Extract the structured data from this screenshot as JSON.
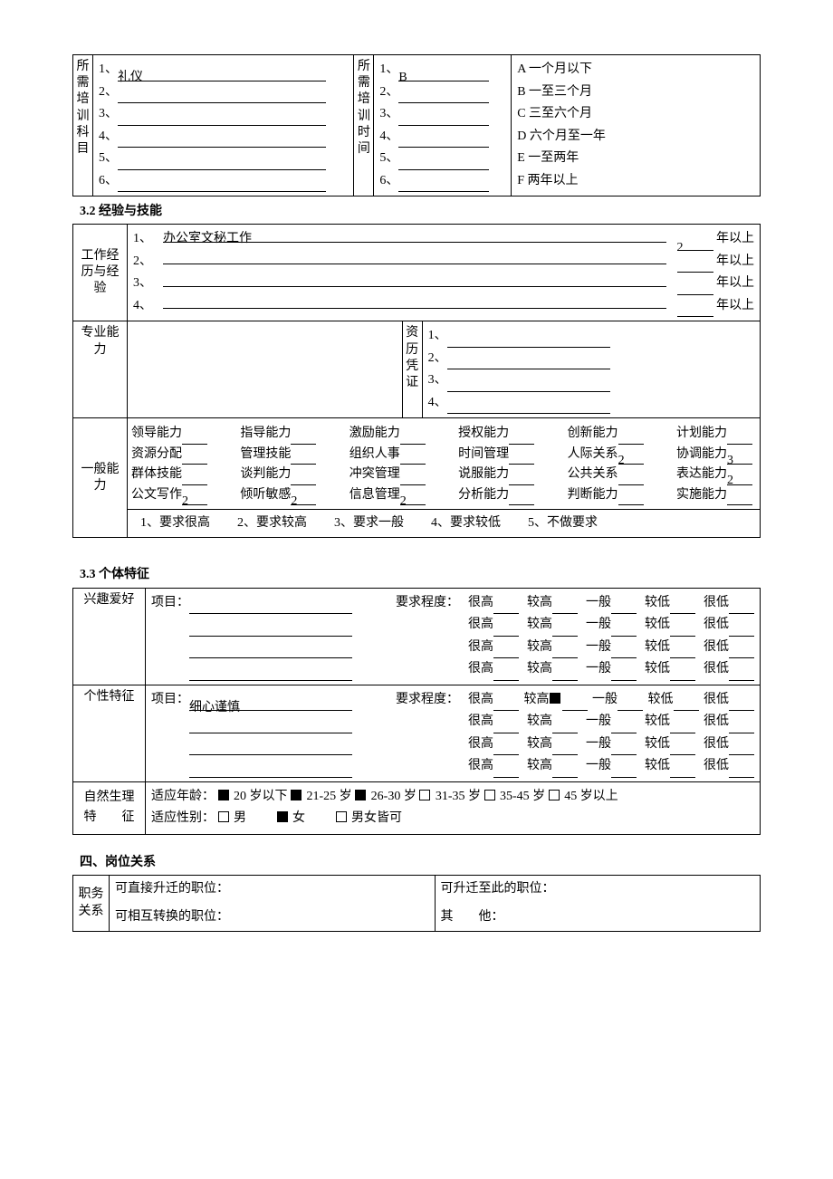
{
  "t1": {
    "left_header": "所需培训科目",
    "left_items": [
      {
        "n": "1、",
        "v": "礼仪"
      },
      {
        "n": "2、",
        "v": ""
      },
      {
        "n": "3、",
        "v": ""
      },
      {
        "n": "4、",
        "v": ""
      },
      {
        "n": "5、",
        "v": ""
      },
      {
        "n": "6、",
        "v": ""
      }
    ],
    "mid_header": "所需培训时间",
    "mid_items": [
      {
        "n": "1、",
        "v": "B"
      },
      {
        "n": "2、",
        "v": ""
      },
      {
        "n": "3、",
        "v": ""
      },
      {
        "n": "4、",
        "v": ""
      },
      {
        "n": "5、",
        "v": ""
      },
      {
        "n": "6、",
        "v": ""
      }
    ],
    "right_items": [
      "A 一个月以下",
      "B 一至三个月",
      "C 三至六个月",
      "D 六个月至一年",
      "E 一至两年",
      "F 两年以上"
    ]
  },
  "s32_title": "3.2 经验与技能",
  "t2": {
    "work_label": "工作经历与经验",
    "work_items": [
      {
        "n": "1、",
        "v": "办公室文秘工作",
        "y": "2"
      },
      {
        "n": "2、",
        "v": "",
        "y": ""
      },
      {
        "n": "3、",
        "v": "",
        "y": ""
      },
      {
        "n": "4、",
        "v": "",
        "y": ""
      }
    ],
    "years_suffix": "年以上",
    "pro_label": "专业能力",
    "cred_label": "资历凭证",
    "cred_items": [
      "1、",
      "2、",
      "3、",
      "4、"
    ],
    "gen_label": "一般能力",
    "gen_rows": [
      [
        {
          "name": "领导能力",
          "v": ""
        },
        {
          "name": "指导能力",
          "v": ""
        },
        {
          "name": "激励能力",
          "v": ""
        },
        {
          "name": "授权能力",
          "v": ""
        },
        {
          "name": "创新能力",
          "v": ""
        },
        {
          "name": "计划能力",
          "v": ""
        }
      ],
      [
        {
          "name": "资源分配",
          "v": ""
        },
        {
          "name": "管理技能",
          "v": ""
        },
        {
          "name": "组织人事",
          "v": ""
        },
        {
          "name": "时间管理",
          "v": ""
        },
        {
          "name": "人际关系",
          "v": "2"
        },
        {
          "name": "协调能力",
          "v": "3"
        }
      ],
      [
        {
          "name": "群体技能",
          "v": ""
        },
        {
          "name": "谈判能力",
          "v": ""
        },
        {
          "name": "冲突管理",
          "v": ""
        },
        {
          "name": "说服能力",
          "v": ""
        },
        {
          "name": "公共关系",
          "v": ""
        },
        {
          "name": "表达能力",
          "v": "2"
        }
      ],
      [
        {
          "name": "公文写作",
          "v": "2"
        },
        {
          "name": "倾听敏感",
          "v": "2"
        },
        {
          "name": "信息管理",
          "v": "2"
        },
        {
          "name": "分析能力",
          "v": ""
        },
        {
          "name": "判断能力",
          "v": ""
        },
        {
          "name": "实施能力",
          "v": ""
        }
      ]
    ],
    "gen_legend": [
      "1、要求很高",
      "2、要求较高",
      "3、要求一般",
      "4、要求较低",
      "5、不做要求"
    ]
  },
  "s33_title": "3.3 个体特征",
  "t3": {
    "interest_label": "兴趣爱好",
    "proj_label": "项目：",
    "req_label": "要求程度：",
    "scale": [
      "很高",
      "较高",
      "一般",
      "较低",
      "很低"
    ],
    "interest_rows": [
      {
        "v": "",
        "sel": null
      },
      {
        "v": "",
        "sel": null
      },
      {
        "v": "",
        "sel": null
      },
      {
        "v": "",
        "sel": null
      }
    ],
    "trait_label": "个性特征",
    "trait_rows": [
      {
        "v": "细心谨慎",
        "sel": 1
      },
      {
        "v": "",
        "sel": null
      },
      {
        "v": "",
        "sel": null
      },
      {
        "v": "",
        "sel": null
      }
    ],
    "phys_label1": "自然生理",
    "phys_label2": "特　　征",
    "age_label": "适应年龄：",
    "age_opts": [
      {
        "t": "20 岁以下",
        "c": true
      },
      {
        "t": "21-25 岁",
        "c": true
      },
      {
        "t": "26-30 岁",
        "c": true
      },
      {
        "t": "31-35 岁",
        "c": false
      },
      {
        "t": "35-45 岁",
        "c": false
      },
      {
        "t": "45 岁以上",
        "c": false
      }
    ],
    "sex_label": "适应性别：",
    "sex_opts": [
      {
        "t": "男",
        "c": false
      },
      {
        "t": "女",
        "c": true
      },
      {
        "t": "男女皆可",
        "c": false
      }
    ]
  },
  "s4_title": "四、岗位关系",
  "t4": {
    "rel_label": "职务关系",
    "a": "可直接升迁的职位：",
    "b": "可升迁至此的职位：",
    "c": "可相互转换的职位：",
    "d": "其　　他："
  }
}
